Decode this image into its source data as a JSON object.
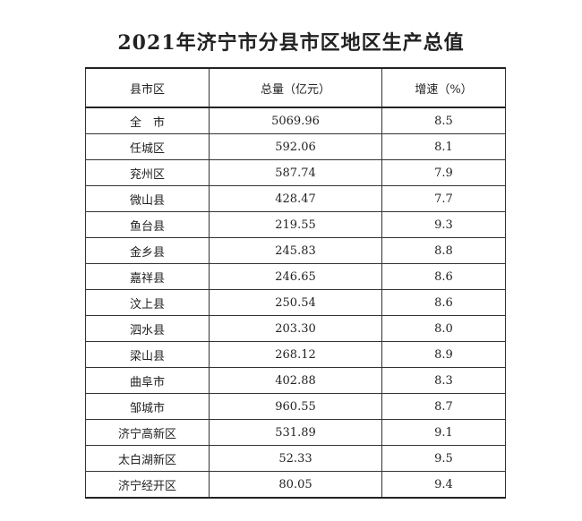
{
  "title": "2021年济宁市分县市区地区生产总值",
  "table": {
    "header": [
      "县市区",
      "总量（亿元）",
      "增速（%）"
    ],
    "rows": [
      [
        "全　市",
        "5069.96",
        "8.5"
      ],
      [
        "任城区",
        "592.06",
        "8.1"
      ],
      [
        "兖州区",
        "587.74",
        "7.9"
      ],
      [
        "微山县",
        "428.47",
        "7.7"
      ],
      [
        "鱼台县",
        "219.55",
        "9.3"
      ],
      [
        "金乡县",
        "245.83",
        "8.8"
      ],
      [
        "嘉祥县",
        "246.65",
        "8.6"
      ],
      [
        "汶上县",
        "250.54",
        "8.6"
      ],
      [
        "泗水县",
        "203.30",
        "8.0"
      ],
      [
        "梁山县",
        "268.12",
        "8.9"
      ],
      [
        "曲阜市",
        "402.88",
        "8.3"
      ],
      [
        "邹城市",
        "960.55",
        "8.7"
      ],
      [
        "济宁高新区",
        "531.89",
        "9.1"
      ],
      [
        "太白湖新区",
        "52.33",
        "9.5"
      ],
      [
        "济宁经开区",
        "80.05",
        "9.4"
      ]
    ]
  }
}
